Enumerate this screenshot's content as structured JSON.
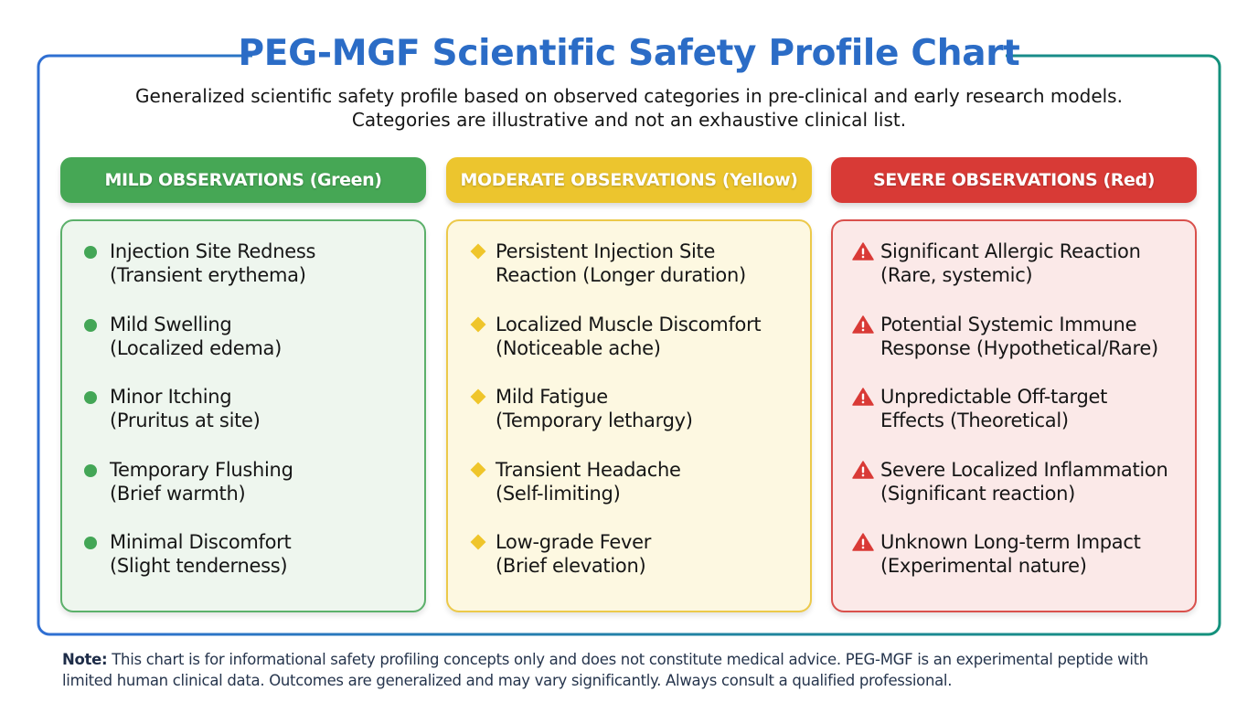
{
  "title": "PEG-MGF Scientific Safety Profile Chart",
  "subtitle": {
    "line1": "Generalized scientific safety profile based on observed categories in pre-clinical and early research models.",
    "line2": "Categories are illustrative and not an exhaustive clinical list."
  },
  "colors": {
    "mild": "#43a656",
    "moderate": "#efc52b",
    "severe": "#d93a36",
    "title": "#2b6cc6"
  },
  "columns": [
    {
      "header": "MILD OBSERVATIONS (Green)",
      "icon": "dot-icon",
      "items": [
        {
          "l1": "Injection Site Redness",
          "l2": "(Transient erythema)"
        },
        {
          "l1": "Mild Swelling",
          "l2": "(Localized edema)"
        },
        {
          "l1": "Minor Itching",
          "l2": "(Pruritus at site)"
        },
        {
          "l1": "Temporary Flushing",
          "l2": "(Brief warmth)"
        },
        {
          "l1": "Minimal Discomfort",
          "l2": "(Slight tenderness)"
        }
      ]
    },
    {
      "header": "MODERATE OBSERVATIONS (Yellow)",
      "icon": "diamond-icon",
      "items": [
        {
          "l1": "Persistent Injection Site",
          "l2": "Reaction (Longer duration)"
        },
        {
          "l1": "Localized Muscle Discomfort",
          "l2": "(Noticeable ache)"
        },
        {
          "l1": "Mild Fatigue",
          "l2": "(Temporary lethargy)"
        },
        {
          "l1": "Transient Headache",
          "l2": "(Self-limiting)"
        },
        {
          "l1": "Low-grade Fever",
          "l2": "(Brief elevation)"
        }
      ]
    },
    {
      "header": "SEVERE OBSERVATIONS (Red)",
      "icon": "warning-icon",
      "items": [
        {
          "l1": "Significant Allergic Reaction",
          "l2": "(Rare, systemic)"
        },
        {
          "l1": "Potential Systemic Immune",
          "l2": "Response (Hypothetical/Rare)"
        },
        {
          "l1": "Unpredictable Off-target",
          "l2": "Effects (Theoretical)"
        },
        {
          "l1": "Severe Localized Inflammation",
          "l2": "(Significant reaction)"
        },
        {
          "l1": "Unknown Long-term Impact",
          "l2": "(Experimental nature)"
        }
      ]
    }
  ],
  "note": {
    "label": "Note:",
    "line1": "This chart is for informational safety profiling concepts only and does not constitute medical advice. PEG-MGF is an experimental peptide with",
    "line2": "limited human clinical data. Outcomes are generalized and may vary significantly. Always consult a qualified professional."
  }
}
